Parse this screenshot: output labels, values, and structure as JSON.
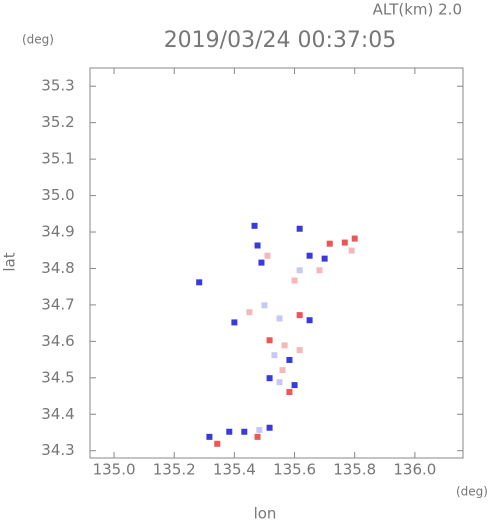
{
  "chart_data": {
    "type": "scatter",
    "title": "2019/03/24 00:37:05",
    "altitude_label": "ALT(km) 2.0",
    "y_unit": "(deg)",
    "x_unit": "(deg)",
    "xlabel": "lon",
    "ylabel": "lat",
    "xlim": [
      134.92,
      136.16
    ],
    "ylim": [
      34.28,
      35.35
    ],
    "xticks": [
      {
        "value": 135,
        "label": "135.0"
      },
      135.2,
      135.4,
      135.6,
      135.8,
      {
        "value": 136,
        "label": "136.0"
      }
    ],
    "yticks": [
      34.3,
      34.4,
      34.5,
      34.6,
      34.7,
      34.8,
      34.9,
      {
        "value": 35,
        "label": "35.0"
      },
      35.1,
      35.2,
      35.3
    ],
    "x": [
      135.467,
      135.477,
      135.49,
      135.51,
      135.617,
      135.717,
      135.767,
      135.8,
      135.79,
      135.65,
      135.617,
      135.6,
      135.683,
      135.283,
      135.4,
      135.45,
      135.5,
      135.55,
      135.617,
      135.65,
      135.517,
      135.567,
      135.533,
      135.583,
      135.617,
      135.517,
      135.56,
      135.6,
      135.583,
      135.55,
      135.317,
      135.383,
      135.433,
      135.483,
      135.517,
      135.343,
      135.477,
      135.7
    ],
    "values": [
      34.917,
      34.863,
      34.816,
      34.835,
      34.909,
      34.868,
      34.871,
      34.882,
      34.849,
      34.835,
      34.795,
      34.767,
      34.795,
      34.762,
      34.652,
      34.68,
      34.699,
      34.663,
      34.672,
      34.658,
      34.603,
      34.589,
      34.562,
      34.549,
      34.576,
      34.499,
      34.521,
      34.48,
      34.461,
      34.488,
      34.338,
      34.352,
      34.352,
      34.357,
      34.363,
      34.319,
      34.338,
      34.827
    ],
    "colors": [
      "#3a3ad8",
      "#3a3ad8",
      "#3a3ad8",
      "#f4b8b8",
      "#3a3ad8",
      "#ee5555",
      "#ee5555",
      "#ee5555",
      "#f4b8b8",
      "#3a3ad8",
      "#c8c8f4",
      "#f4b8b8",
      "#f4b8b8",
      "#3a3ad8",
      "#3a3ad8",
      "#f4b8b8",
      "#c8c8f4",
      "#c8c8f4",
      "#ee5555",
      "#3a3ad8",
      "#ee5555",
      "#f4b8b8",
      "#c8c8f4",
      "#3a3ad8",
      "#f4b8b8",
      "#3a3ad8",
      "#f4b8b8",
      "#3a3ad8",
      "#ee5555",
      "#c8c8f4",
      "#3a3ad8",
      "#3a3ad8",
      "#3a3ad8",
      "#c8c8f4",
      "#3a3ad8",
      "#ee5555",
      "#ee5555",
      "#3a3ad8"
    ]
  }
}
